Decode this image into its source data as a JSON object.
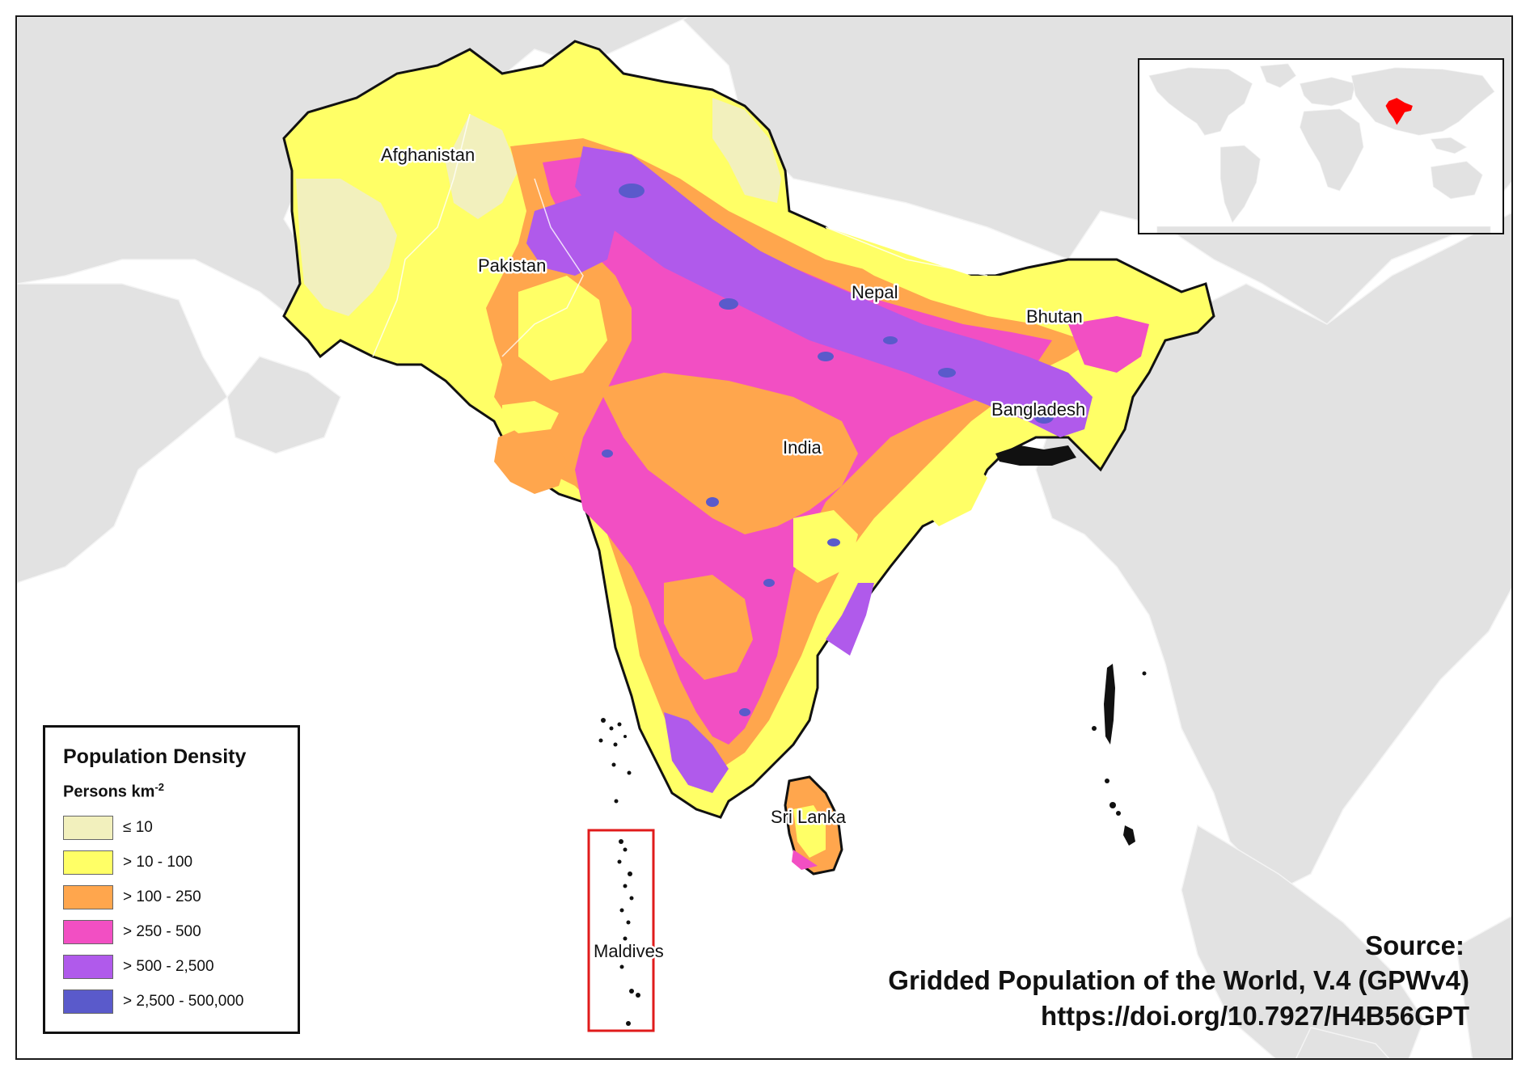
{
  "map": {
    "countries": [
      {
        "name": "Afghanistan"
      },
      {
        "name": "Pakistan"
      },
      {
        "name": "Nepal"
      },
      {
        "name": "Bhutan"
      },
      {
        "name": "Bangladesh"
      },
      {
        "name": "India"
      },
      {
        "name": "Sri Lanka"
      },
      {
        "name": "Maldives"
      }
    ],
    "highlight_color": "#e01b1b",
    "land_background_color": "#e2e2e2",
    "sea_color": "#ffffff"
  },
  "legend": {
    "title": "Population Density",
    "subtitle": "Persons km",
    "subtitle_sup": "-2",
    "classes": [
      {
        "label": "≤ 10",
        "color": "#f2f0bd"
      },
      {
        "label": "> 10 - 100",
        "color": "#ffff66"
      },
      {
        "label": "> 100 - 250",
        "color": "#ffa64d"
      },
      {
        "label": "> 250 - 500",
        "color": "#f24fc3"
      },
      {
        "label": "> 500 - 2,500",
        "color": "#b05aeb"
      },
      {
        "label": "> 2,500 - 500,000",
        "color": "#5a5acb"
      }
    ]
  },
  "source": {
    "title": "Source:",
    "line1": "Gridded Population of the World, V.4 (GPWv4)",
    "line2": "https://doi.org/10.7927/H4B56GPT"
  },
  "inset": {
    "highlight_color": "#ff0000"
  }
}
